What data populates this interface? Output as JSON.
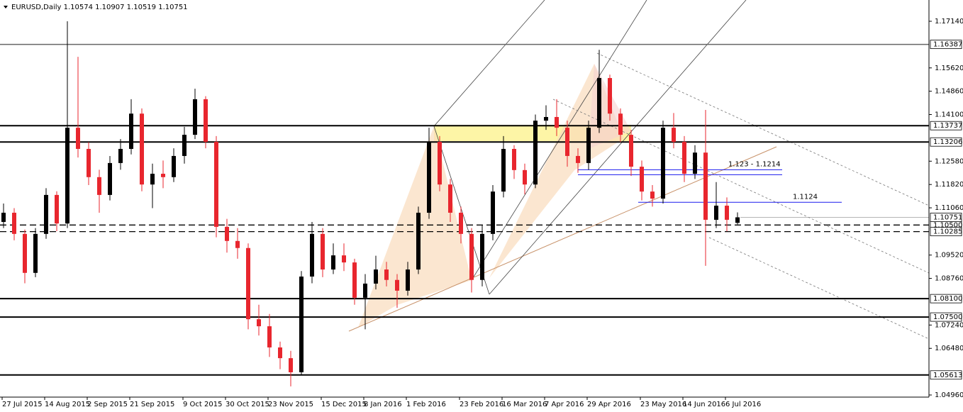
{
  "chart_data": {
    "type": "candlestick",
    "title": "EURUSD,Daily  1.10574 1.10907 1.10519 1.10751",
    "categories": [
      "27 Jul 2015",
      null,
      null,
      null,
      "14 Aug 2015",
      null,
      null,
      null,
      "2 Sep 2015",
      null,
      null,
      null,
      "21 Sep 2015",
      null,
      null,
      null,
      null,
      "9 Oct 2015",
      null,
      null,
      null,
      "30 Oct 2015",
      null,
      null,
      null,
      "23 Nov 2015",
      null,
      null,
      null,
      null,
      "15 Dec 2015",
      null,
      null,
      null,
      "8 Jan 2016",
      null,
      null,
      null,
      "1 Feb 2016",
      null,
      null,
      null,
      null,
      "23 Feb 2016",
      null,
      null,
      null,
      "16 Mar 2016",
      null,
      null,
      null,
      "7 Apr 2016",
      null,
      null,
      null,
      "29 Apr 2016",
      null,
      null,
      null,
      null,
      "23 May 2016",
      null,
      null,
      null,
      "14 Jun 2016",
      null,
      null,
      null,
      "6 Jul 2016",
      null
    ],
    "open": [
      1.106,
      1.109,
      1.1021,
      1.0894,
      1.1021,
      1.1148,
      1.1055,
      1.1367,
      1.1298,
      1.1206,
      1.1148,
      1.1252,
      1.1298,
      1.1413,
      1.1182,
      1.1217,
      1.1206,
      1.1275,
      1.1344,
      1.146,
      1.1321,
      1.1044,
      1.0998,
      1.0975,
      1.0743,
      1.072,
      1.0651,
      1.0616,
      1.057,
      1.0882,
      1.1021,
      1.0905,
      1.0951,
      1.0928,
      1.0813,
      1.0859,
      1.0905,
      1.0871,
      1.0836,
      1.0905,
      1.109,
      1.1321,
      1.1182,
      1.109,
      1.1021,
      1.0871,
      1.1021,
      1.1159,
      1.1298,
      1.1229,
      1.1182,
      1.139,
      1.1402,
      1.1367,
      1.1275,
      1.1252,
      1.1367,
      1.1529,
      1.1413,
      1.1344,
      1.124,
      1.1159,
      1.1136,
      1.1367,
      1.1321,
      1.1217,
      1.1286,
      1.1067,
      1.1113,
      1.1057
    ],
    "high": [
      1.112,
      1.1105,
      1.1035,
      1.104,
      1.117,
      1.116,
      1.1714,
      1.1598,
      1.132,
      1.123,
      1.1275,
      1.133,
      1.146,
      1.143,
      1.125,
      1.126,
      1.13,
      1.137,
      1.1494,
      1.147,
      1.134,
      1.107,
      1.104,
      1.099,
      1.079,
      1.076,
      1.067,
      1.064,
      1.09,
      1.106,
      1.104,
      1.099,
      1.099,
      1.094,
      1.089,
      1.095,
      1.093,
      1.089,
      1.093,
      1.111,
      1.1367,
      1.134,
      1.12,
      1.111,
      1.104,
      1.105,
      1.118,
      1.134,
      1.131,
      1.125,
      1.141,
      1.144,
      1.146,
      1.139,
      1.13,
      1.139,
      1.1621,
      1.154,
      1.143,
      1.136,
      1.126,
      1.118,
      1.139,
      1.1415,
      1.134,
      1.131,
      1.1425,
      1.119,
      1.114,
      1.1091
    ],
    "low": [
      1.104,
      1.1,
      1.086,
      1.088,
      1.1005,
      1.103,
      1.104,
      1.127,
      1.118,
      1.109,
      1.113,
      1.123,
      1.128,
      1.116,
      1.1105,
      1.117,
      1.119,
      1.125,
      1.133,
      1.13,
      1.101,
      1.096,
      1.094,
      1.071,
      1.069,
      1.062,
      1.058,
      1.0524,
      1.056,
      1.086,
      1.088,
      1.089,
      1.09,
      1.079,
      1.071,
      1.084,
      1.085,
      1.078,
      1.082,
      1.089,
      1.107,
      1.116,
      1.106,
      1.099,
      1.083,
      1.085,
      1.1,
      1.114,
      1.12,
      1.115,
      1.117,
      1.136,
      1.134,
      1.124,
      1.122,
      1.123,
      1.135,
      1.139,
      1.132,
      1.121,
      1.113,
      1.111,
      1.112,
      1.13,
      1.119,
      1.12,
      1.0917,
      1.104,
      1.103,
      1.1052
    ],
    "close": [
      1.109,
      1.1021,
      1.0894,
      1.1021,
      1.1148,
      1.1055,
      1.1367,
      1.1298,
      1.1206,
      1.1148,
      1.1252,
      1.1298,
      1.1413,
      1.1182,
      1.1217,
      1.1206,
      1.1275,
      1.1344,
      1.146,
      1.1321,
      1.1044,
      1.0998,
      1.0975,
      1.0743,
      1.072,
      1.0651,
      1.0616,
      1.057,
      1.0882,
      1.1021,
      1.0905,
      1.0951,
      1.0928,
      1.0813,
      1.0859,
      1.0905,
      1.0871,
      1.0836,
      1.0905,
      1.109,
      1.1321,
      1.1182,
      1.109,
      1.1021,
      1.0871,
      1.1021,
      1.1159,
      1.1298,
      1.1229,
      1.1182,
      1.139,
      1.1402,
      1.1367,
      1.1275,
      1.1252,
      1.1367,
      1.1529,
      1.1413,
      1.1344,
      1.124,
      1.1159,
      1.1136,
      1.1367,
      1.1321,
      1.1217,
      1.1286,
      1.1067,
      1.1113,
      1.1067,
      1.1075
    ],
    "up_color": "#000000",
    "down_color": "#e8262e",
    "ylim": [
      1.04891,
      1.17833
    ],
    "yticks": [
      {
        "value": 1.1714,
        "label": "1.17140"
      },
      {
        "value": 1.1562,
        "label": "1.15620"
      },
      {
        "value": 1.1486,
        "label": "1.14860"
      },
      {
        "value": 1.141,
        "label": "1.14100"
      },
      {
        "value": 1.1258,
        "label": "1.12580"
      },
      {
        "value": 1.1182,
        "label": "1.11820"
      },
      {
        "value": 1.1106,
        "label": "1.11060"
      },
      {
        "value": 1.0952,
        "label": "1.09520"
      },
      {
        "value": 1.0876,
        "label": "1.08760"
      },
      {
        "value": 1.0724,
        "label": "1.07240"
      },
      {
        "value": 1.0648,
        "label": "1.06480"
      },
      {
        "value": 1.0496,
        "label": "1.04960"
      }
    ],
    "levels": [
      {
        "value": 1.16387,
        "label": "1.16387",
        "style": "gray"
      },
      {
        "value": 1.13737,
        "label": "1.13737",
        "style": "solid"
      },
      {
        "value": 1.13206,
        "label": "1.13206",
        "style": "solid"
      },
      {
        "value": 1.105,
        "label": "1.10500",
        "style": "dashed"
      },
      {
        "value": 1.10285,
        "label": "1.10285",
        "style": "dashed"
      },
      {
        "value": 1.081,
        "label": "1.08100",
        "style": "solid"
      },
      {
        "value": 1.075,
        "label": "1.07500",
        "style": "solid"
      },
      {
        "value": 1.05613,
        "label": "1.05613",
        "style": "solid"
      }
    ],
    "price_label": 1.10751,
    "annotations": [
      {
        "text": "1.123 - 1.1214",
        "values": [
          1.123,
          1.1214
        ]
      },
      {
        "text": "1.1124",
        "values": [
          1.1124
        ]
      }
    ]
  }
}
